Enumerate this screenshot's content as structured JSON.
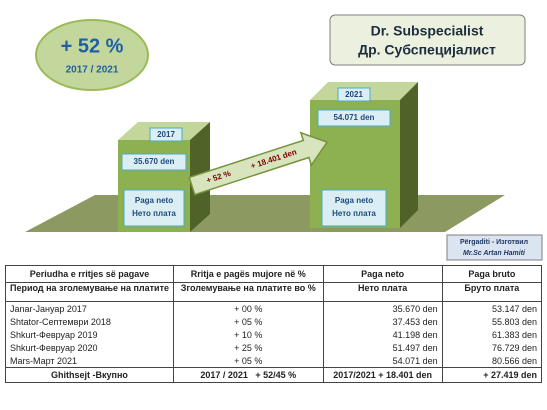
{
  "badge": {
    "change": "+ 52 %",
    "period": "2017 / 2021"
  },
  "title": {
    "line1": "Dr. Subspecialist",
    "line2": "Др. Субспецијалист"
  },
  "bars": [
    {
      "year": "2017",
      "amount": "35.670 den",
      "label1": "Paga neto",
      "label2": "Нето плата"
    },
    {
      "year": "2021",
      "amount": "54.071 den",
      "label1": "Paga neto",
      "label2": "Нето плата"
    }
  ],
  "arrow": {
    "percent": "+ 52 %",
    "amount": "+ 18.401 den"
  },
  "credit": {
    "line1": "Përgaditi - Изготвил",
    "line2": "Mr.Sc Artan Hamiti"
  },
  "table": {
    "header": [
      [
        "Periudha e rritjes së pagave",
        "Период на зголемување на платите"
      ],
      [
        "Rritja e pagës mujore në %",
        "Зголемување на платите во %"
      ],
      [
        "Paga neto",
        "Нето плата"
      ],
      [
        "Paga bruto",
        "Бруто плата"
      ]
    ],
    "rows": [
      [
        "Janar-Јануар 2017",
        "+ 00 %",
        "35.670 den",
        "53.147 den"
      ],
      [
        "Shtator-Септември 2018",
        "+ 05 %",
        "37.453 den",
        "55.803 den"
      ],
      [
        "Shkurt-Февруар 2019",
        "+ 10 %",
        "41.198 den",
        "61.383 den"
      ],
      [
        "Shkurt-Февруар 2020",
        "+ 25 %",
        "51.497 den",
        "76.729 den"
      ],
      [
        "Mars-Март 2021",
        "+ 05 %",
        "54.071 den",
        "80.566 den"
      ]
    ],
    "total": [
      "Ghithsejt -Вкупно",
      "2017 / 2021   + 52/45 %",
      "2017/2021 + 18.401 den",
      "+ 27.419 den"
    ]
  }
}
